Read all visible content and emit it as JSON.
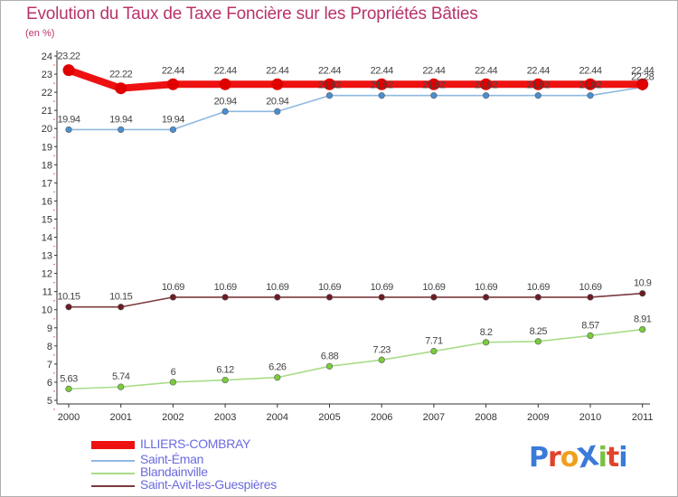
{
  "header": {
    "title": "Evolution du Taux de Taxe Foncière sur les Propriétés Bâties",
    "unit": "(en %)"
  },
  "logo": {
    "text": "ProXiti",
    "letter_colors": [
      "#3a7ad9",
      "#e0442a",
      "#f0a020",
      "#3a7ad9",
      "#7ac043",
      "#e0442a",
      "#3a7ad9"
    ]
  },
  "chart_data": {
    "type": "line",
    "title": "Evolution du Taux de Taxe Foncière sur les Propriétés Bâties",
    "ylabel": "(en %)",
    "xlabel": "",
    "x": [
      "2000",
      "2001",
      "2002",
      "2003",
      "2004",
      "2005",
      "2006",
      "2007",
      "2008",
      "2009",
      "2010",
      "2011"
    ],
    "ylim": [
      5,
      24
    ],
    "yticks": [
      5,
      6,
      7,
      8,
      9,
      10,
      11,
      12,
      13,
      14,
      15,
      16,
      17,
      18,
      19,
      20,
      21,
      22,
      23,
      24
    ],
    "grid": false,
    "legend_position": "bottom-left",
    "series": [
      {
        "name": "Saint-Éman",
        "color": "#4a8fd0",
        "line_color": "#8fb8e0",
        "values": [
          19.94,
          19.94,
          19.94,
          20.94,
          20.94,
          21.82,
          21.82,
          21.82,
          21.82,
          21.82,
          21.82,
          22.28
        ],
        "labels": [
          "19.94",
          "19.94",
          "19.94",
          "20.94",
          "20.94",
          "21.82",
          "21.82",
          "21.82",
          "21.82",
          "21.82",
          "21.82",
          "22.28"
        ]
      },
      {
        "name": "Blandainville",
        "color": "#7acc3a",
        "line_color": "#a8dc88",
        "values": [
          5.63,
          5.74,
          6,
          6.12,
          6.26,
          6.88,
          7.23,
          7.71,
          8.2,
          8.25,
          8.57,
          8.91
        ],
        "labels": [
          "5.63",
          "5.74",
          "6",
          "6.12",
          "6.26",
          "6.88",
          "7.23",
          "7.71",
          "8.2",
          "8.25",
          "8.57",
          "8.91"
        ]
      },
      {
        "name": "Saint-Avit-les-Guespières",
        "color": "#6b1c22",
        "line_color": "#7a3a3e",
        "values": [
          10.15,
          10.15,
          10.69,
          10.69,
          10.69,
          10.69,
          10.69,
          10.69,
          10.69,
          10.69,
          10.69,
          10.9
        ],
        "labels": [
          "10.15",
          "10.15",
          "10.69",
          "10.69",
          "10.69",
          "10.69",
          "10.69",
          "10.69",
          "10.69",
          "10.69",
          "10.69",
          "10.9"
        ]
      },
      {
        "name": "ILLIERS-COMBRAY",
        "color": "#e00000",
        "line_color": "#ee1111",
        "values": [
          23.22,
          22.22,
          22.44,
          22.44,
          22.44,
          22.44,
          22.44,
          22.44,
          22.44,
          22.44,
          22.44,
          22.44
        ],
        "labels": [
          "23.22",
          "22.22",
          "22.44",
          "22.44",
          "22.44",
          "22.44",
          "22.44",
          "22.44",
          "22.44",
          "22.44",
          "22.44",
          "22.44"
        ]
      }
    ],
    "legend": [
      {
        "name": "ILLIERS-COMBRAY",
        "color": "#ee1111",
        "thick": true
      },
      {
        "name": "Saint-Éman",
        "color": "#8fb8e0",
        "thick": false
      },
      {
        "name": "Blandainville",
        "color": "#a8dc88",
        "thick": false
      },
      {
        "name": "Saint-Avit-les-Guespières",
        "color": "#7a3a3e",
        "thick": false
      }
    ]
  }
}
